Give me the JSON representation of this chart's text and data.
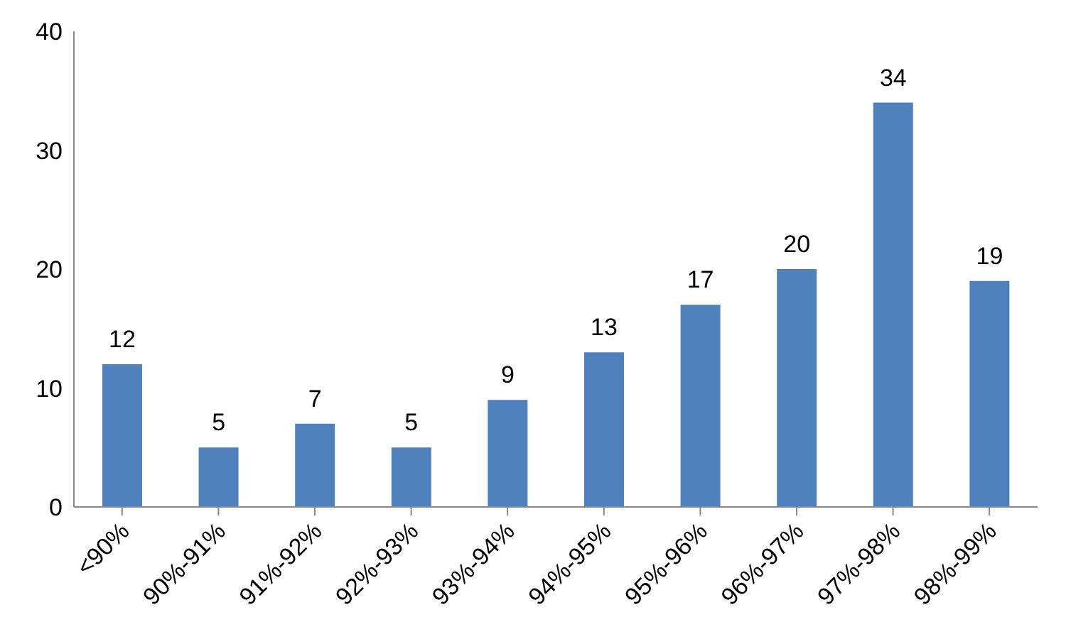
{
  "chart_data": {
    "type": "bar",
    "categories": [
      "<90%",
      "90%-91%",
      "91%-92%",
      "92%-93%",
      "93%-94%",
      "94%-95%",
      "95%-96%",
      "96%-97%",
      "97%-98%",
      "98%-99%"
    ],
    "values": [
      12,
      5,
      7,
      5,
      9,
      13,
      17,
      20,
      34,
      19
    ],
    "color": "#4f81bd",
    "ylim": [
      0,
      40
    ],
    "yticks": [
      0,
      10,
      20,
      30,
      40
    ],
    "grid": false,
    "data_labels": true
  }
}
